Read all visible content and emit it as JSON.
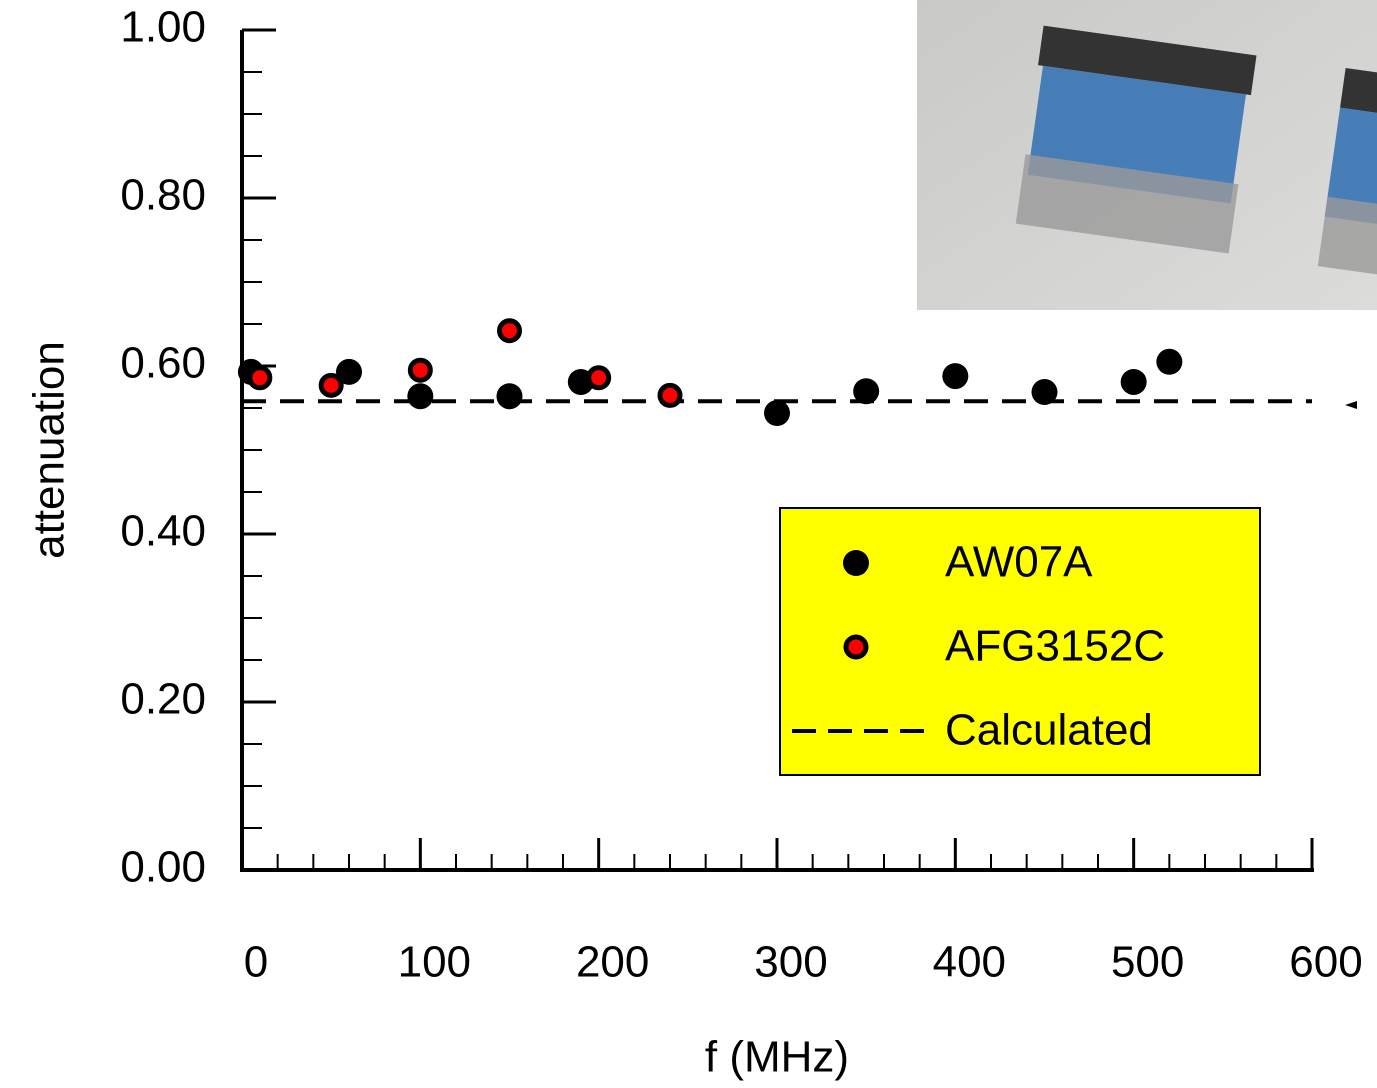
{
  "chart_data": {
    "type": "scatter",
    "xlabel": "f (MHz)",
    "ylabel": "attenuation",
    "xlim": [
      0,
      600
    ],
    "xticks": [
      0,
      100,
      200,
      300,
      400,
      500,
      600
    ],
    "ylim": [
      0,
      1
    ],
    "yticks": [
      {
        "value": 0,
        "label": "0.00"
      },
      {
        "value": 0.2,
        "label": "0.20"
      },
      {
        "value": 0.4,
        "label": "0.40"
      },
      {
        "value": 0.6,
        "label": "0.60"
      },
      {
        "value": 0.8,
        "label": "0.80"
      },
      {
        "value": 1,
        "label": "1.00"
      }
    ],
    "legend": "center right",
    "legend_color": "#ffff00",
    "series": [
      {
        "name": "AW07A",
        "kind": "marker",
        "color": "#000000",
        "edgecolor": "#000000",
        "x": [
          5,
          60,
          100,
          150,
          190,
          300,
          350,
          400,
          450,
          500,
          520
        ],
        "values": [
          0.593,
          0.593,
          0.564,
          0.564,
          0.581,
          0.544,
          0.57,
          0.588,
          0.569,
          0.581,
          0.605
        ]
      },
      {
        "name": "AFG3152C",
        "kind": "marker",
        "color": "#ff0000",
        "edgecolor": "#000000",
        "x": [
          10,
          50,
          100,
          150,
          200,
          240
        ],
        "values": [
          0.586,
          0.577,
          0.595,
          0.642,
          0.586,
          0.565
        ]
      },
      {
        "name": "Calculated",
        "kind": "dashed",
        "color": "#000000",
        "x": [
          0,
          600
        ],
        "values": [
          0.558,
          0.558
        ]
      }
    ]
  }
}
